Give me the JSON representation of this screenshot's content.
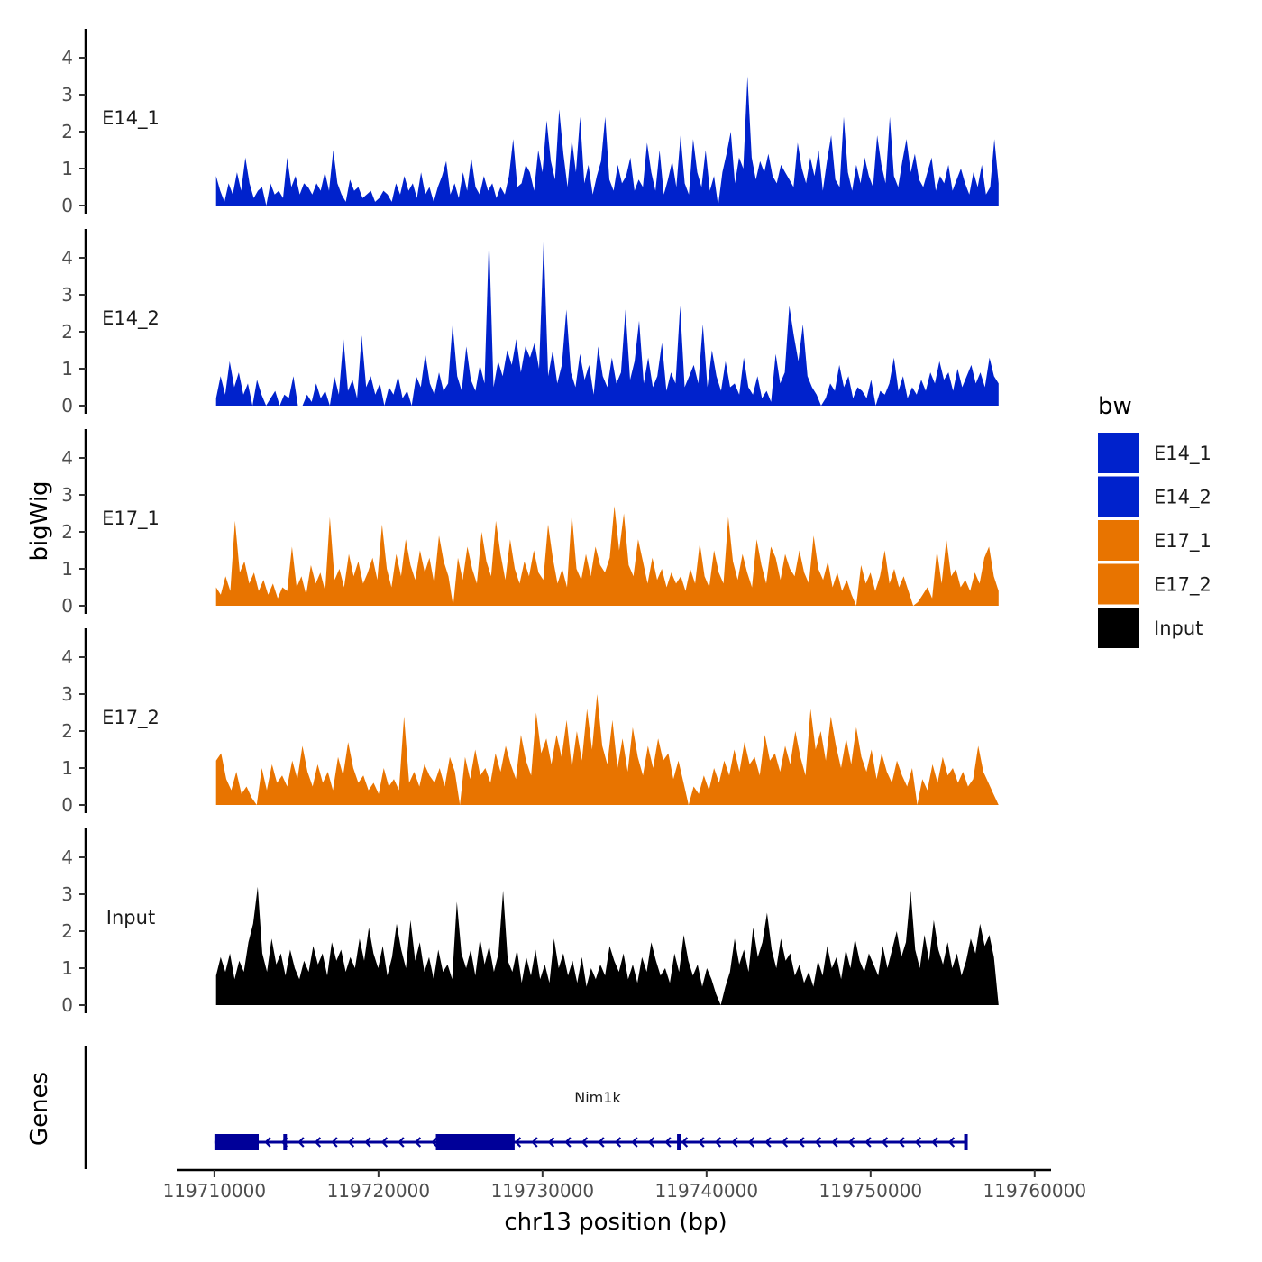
{
  "chart_data": {
    "type": "area",
    "xlabel": "chr13 position (bp)",
    "ylabel": "bigWig",
    "genes_label": "Genes",
    "xlim": [
      119707700,
      119761000
    ],
    "ylim": [
      0,
      4.8
    ],
    "x_ticks": [
      119710000,
      119720000,
      119730000,
      119740000,
      119750000,
      119760000
    ],
    "x_tick_labels": [
      "119710000",
      "119720000",
      "119730000",
      "119740000",
      "119750000",
      "119760000"
    ],
    "y_ticks": [
      0,
      1,
      2,
      3,
      4
    ],
    "y_tick_labels": [
      "0",
      "1",
      "2",
      "3",
      "4"
    ],
    "legend": {
      "title": "bw",
      "entries": [
        {
          "label": "E14_1",
          "color": "#0022cc"
        },
        {
          "label": "E14_2",
          "color": "#0022cc"
        },
        {
          "label": "E17_1",
          "color": "#e87400"
        },
        {
          "label": "E17_2",
          "color": "#e87400"
        },
        {
          "label": "Input",
          "color": "#000000"
        }
      ]
    },
    "series_x_start": 119710100,
    "series_x_end": 119757800,
    "series": [
      {
        "name": "E14_1",
        "color": "#0022cc",
        "values": [
          0.8,
          0.4,
          0.1,
          0.6,
          0.3,
          0.9,
          0.4,
          1.3,
          0.6,
          0.2,
          0.4,
          0.5,
          0.0,
          0.6,
          0.3,
          0.4,
          0.2,
          1.3,
          0.5,
          0.8,
          0.3,
          0.6,
          0.5,
          0.3,
          0.6,
          0.4,
          0.9,
          0.4,
          1.5,
          0.6,
          0.3,
          0.1,
          0.7,
          0.4,
          0.5,
          0.2,
          0.3,
          0.4,
          0.1,
          0.2,
          0.4,
          0.3,
          0.1,
          0.6,
          0.3,
          0.8,
          0.4,
          0.6,
          0.2,
          0.9,
          0.3,
          0.5,
          0.1,
          0.5,
          0.8,
          1.2,
          0.3,
          0.6,
          0.2,
          0.9,
          0.4,
          1.3,
          0.5,
          0.3,
          0.8,
          0.4,
          0.6,
          0.2,
          0.5,
          0.3,
          0.8,
          1.8,
          0.5,
          0.6,
          1.1,
          0.9,
          0.4,
          1.5,
          0.9,
          2.3,
          1.2,
          0.7,
          2.6,
          1.4,
          0.5,
          1.8,
          0.9,
          2.4,
          0.6,
          1.1,
          0.3,
          0.8,
          1.2,
          2.4,
          0.7,
          0.4,
          1.1,
          0.6,
          0.8,
          1.3,
          0.4,
          0.7,
          0.5,
          1.7,
          0.9,
          0.4,
          1.5,
          0.3,
          0.7,
          1.2,
          0.5,
          1.9,
          0.6,
          0.3,
          1.8,
          0.9,
          0.5,
          1.5,
          0.4,
          0.8,
          0.0,
          0.9,
          1.4,
          2.0,
          0.6,
          1.3,
          1.0,
          3.5,
          1.3,
          0.7,
          1.2,
          0.9,
          1.4,
          0.8,
          0.6,
          1.1,
          0.9,
          0.7,
          0.5,
          1.7,
          1.0,
          0.6,
          1.3,
          0.8,
          1.5,
          0.4,
          1.2,
          1.9,
          0.7,
          0.5,
          2.4,
          0.9,
          0.4,
          1.1,
          0.6,
          1.3,
          0.8,
          0.5,
          1.9,
          1.1,
          0.6,
          2.4,
          0.8,
          0.5,
          1.2,
          1.8,
          0.9,
          1.4,
          0.7,
          0.5,
          0.9,
          1.3,
          0.4,
          0.8,
          0.6,
          1.1,
          0.4,
          0.7,
          1.0,
          0.6,
          0.3,
          0.9,
          0.5,
          1.1,
          0.3,
          0.5,
          1.8,
          0.6
        ]
      },
      {
        "name": "E14_2",
        "color": "#0022cc",
        "values": [
          0.2,
          0.8,
          0.3,
          1.2,
          0.5,
          0.9,
          0.3,
          0.6,
          0.0,
          0.7,
          0.3,
          0.0,
          0.2,
          0.4,
          0.0,
          0.3,
          0.2,
          0.8,
          0.0,
          0.0,
          0.3,
          0.1,
          0.6,
          0.2,
          0.4,
          0.0,
          0.8,
          0.3,
          1.8,
          0.4,
          0.7,
          0.2,
          1.9,
          0.5,
          0.8,
          0.3,
          0.6,
          0.0,
          0.5,
          0.3,
          0.8,
          0.2,
          0.4,
          0.0,
          0.8,
          0.5,
          1.4,
          0.6,
          0.3,
          0.9,
          0.4,
          0.6,
          2.2,
          0.8,
          0.4,
          1.6,
          0.7,
          0.4,
          1.1,
          0.6,
          4.6,
          0.5,
          1.2,
          0.8,
          1.5,
          1.1,
          1.8,
          0.9,
          1.6,
          1.3,
          1.7,
          1.0,
          4.5,
          0.8,
          1.5,
          0.6,
          1.1,
          2.6,
          0.9,
          0.5,
          1.4,
          0.7,
          1.1,
          0.3,
          1.6,
          0.8,
          0.5,
          1.3,
          0.6,
          0.9,
          2.6,
          0.7,
          1.2,
          2.3,
          0.6,
          1.3,
          0.5,
          0.8,
          1.7,
          0.4,
          0.9,
          0.6,
          2.7,
          0.5,
          0.8,
          1.1,
          0.6,
          2.2,
          0.5,
          1.5,
          0.8,
          0.4,
          1.2,
          0.5,
          0.6,
          0.3,
          1.3,
          0.5,
          0.3,
          0.8,
          0.2,
          0.4,
          0.1,
          1.4,
          0.6,
          0.9,
          2.7,
          1.9,
          1.2,
          2.2,
          0.8,
          0.5,
          0.3,
          0.0,
          0.2,
          0.6,
          0.4,
          1.1,
          0.5,
          0.8,
          0.2,
          0.5,
          0.4,
          0.2,
          0.7,
          0.0,
          0.4,
          0.3,
          0.6,
          1.3,
          0.4,
          0.8,
          0.2,
          0.5,
          0.3,
          0.7,
          0.4,
          0.9,
          0.6,
          1.2,
          0.7,
          0.9,
          0.4,
          1.0,
          0.5,
          0.8,
          1.1,
          0.6,
          0.9,
          0.5,
          1.3,
          0.8,
          0.6
        ]
      },
      {
        "name": "E17_1",
        "color": "#e87400",
        "values": [
          0.5,
          0.3,
          0.8,
          0.4,
          2.3,
          0.9,
          1.2,
          0.6,
          0.9,
          0.4,
          0.7,
          0.3,
          0.6,
          0.2,
          0.5,
          0.4,
          1.6,
          0.5,
          0.8,
          0.3,
          1.1,
          0.6,
          0.9,
          0.4,
          2.4,
          0.7,
          1.0,
          0.5,
          1.4,
          0.8,
          1.2,
          0.6,
          0.9,
          1.3,
          0.7,
          2.2,
          1.0,
          0.5,
          1.4,
          0.8,
          1.8,
          1.1,
          0.7,
          1.5,
          0.9,
          1.3,
          0.6,
          1.9,
          1.2,
          0.8,
          0.0,
          1.3,
          0.7,
          1.6,
          1.0,
          0.6,
          2.0,
          1.2,
          0.8,
          2.3,
          1.4,
          0.7,
          1.8,
          1.0,
          0.6,
          1.2,
          0.8,
          1.5,
          0.9,
          0.7,
          2.2,
          1.3,
          0.6,
          1.0,
          0.5,
          2.5,
          1.0,
          0.7,
          1.4,
          0.8,
          1.6,
          1.1,
          0.9,
          1.3,
          2.7,
          1.5,
          2.5,
          1.1,
          0.8,
          1.8,
          1.2,
          0.6,
          1.3,
          0.7,
          1.0,
          0.5,
          0.9,
          0.6,
          0.8,
          0.4,
          1.0,
          0.6,
          1.7,
          0.8,
          0.5,
          1.5,
          0.9,
          0.6,
          2.4,
          1.2,
          0.7,
          1.4,
          0.9,
          0.5,
          1.8,
          1.1,
          0.6,
          1.6,
          1.3,
          0.7,
          1.4,
          1.0,
          0.8,
          1.5,
          0.9,
          0.6,
          1.9,
          1.0,
          0.7,
          1.2,
          0.5,
          0.9,
          0.4,
          0.7,
          0.3,
          0.0,
          1.1,
          0.6,
          0.9,
          0.4,
          0.8,
          1.5,
          0.6,
          1.0,
          0.5,
          0.8,
          0.4,
          0.0,
          0.1,
          0.3,
          0.5,
          0.2,
          1.5,
          0.6,
          1.8,
          0.8,
          1.0,
          0.5,
          0.7,
          0.4,
          0.9,
          0.6,
          1.3,
          1.6,
          0.8,
          0.4
        ]
      },
      {
        "name": "E17_2",
        "color": "#e87400",
        "values": [
          1.2,
          1.4,
          0.7,
          0.4,
          0.9,
          0.3,
          0.5,
          0.2,
          0.0,
          1.0,
          0.4,
          1.1,
          0.6,
          0.8,
          0.5,
          1.2,
          0.7,
          1.6,
          0.9,
          0.5,
          1.1,
          0.6,
          0.9,
          0.4,
          1.3,
          0.8,
          1.7,
          1.0,
          0.6,
          0.8,
          0.4,
          0.6,
          0.3,
          1.0,
          0.5,
          0.7,
          0.4,
          2.4,
          0.6,
          0.9,
          0.5,
          1.1,
          0.8,
          0.6,
          1.0,
          0.5,
          1.3,
          0.9,
          0.0,
          1.3,
          0.7,
          1.5,
          0.8,
          1.0,
          0.6,
          1.4,
          0.9,
          1.6,
          1.1,
          0.7,
          1.9,
          1.2,
          0.8,
          2.5,
          1.4,
          1.8,
          1.1,
          1.9,
          1.3,
          2.3,
          1.0,
          2.0,
          1.2,
          2.6,
          1.5,
          3.0,
          1.6,
          1.1,
          2.3,
          1.0,
          1.8,
          0.9,
          2.1,
          1.3,
          0.8,
          1.6,
          1.0,
          1.8,
          1.2,
          1.4,
          0.7,
          1.2,
          0.6,
          0.0,
          0.5,
          0.3,
          0.8,
          0.4,
          1.0,
          0.6,
          1.2,
          0.8,
          1.5,
          0.9,
          1.7,
          1.1,
          1.3,
          0.8,
          1.9,
          1.2,
          1.4,
          0.9,
          1.6,
          1.1,
          2.0,
          1.3,
          0.8,
          2.6,
          1.5,
          2.0,
          1.2,
          2.4,
          1.6,
          1.0,
          1.8,
          1.1,
          2.1,
          1.3,
          0.9,
          1.5,
          0.7,
          1.4,
          0.9,
          0.6,
          1.2,
          0.8,
          0.5,
          1.0,
          0.0,
          0.7,
          0.4,
          1.1,
          0.6,
          1.3,
          0.8,
          1.0,
          0.6,
          0.9,
          0.5,
          0.7,
          1.6,
          0.9,
          0.6,
          0.3,
          0.0
        ]
      },
      {
        "name": "Input",
        "color": "#000000",
        "values": [
          0.8,
          1.3,
          0.9,
          1.4,
          0.7,
          1.2,
          0.9,
          1.7,
          2.2,
          3.2,
          1.4,
          0.9,
          1.8,
          1.1,
          1.4,
          0.8,
          1.5,
          1.0,
          0.7,
          1.2,
          0.9,
          1.6,
          1.1,
          1.4,
          0.8,
          1.7,
          1.2,
          1.5,
          0.9,
          1.3,
          1.0,
          1.8,
          1.2,
          2.1,
          1.4,
          1.0,
          1.6,
          0.8,
          1.3,
          2.2,
          1.5,
          1.0,
          2.3,
          1.2,
          1.7,
          0.9,
          1.3,
          0.7,
          1.5,
          0.9,
          1.1,
          0.7,
          2.8,
          1.4,
          1.0,
          1.5,
          0.8,
          1.8,
          1.1,
          1.6,
          0.9,
          1.4,
          3.1,
          1.2,
          0.9,
          1.5,
          0.6,
          1.3,
          0.8,
          1.5,
          0.7,
          1.1,
          0.6,
          1.8,
          1.0,
          1.4,
          0.8,
          1.2,
          0.6,
          1.3,
          0.5,
          1.0,
          0.7,
          1.1,
          0.8,
          1.6,
          1.2,
          0.9,
          1.4,
          0.7,
          1.1,
          0.6,
          1.3,
          0.9,
          1.7,
          1.2,
          0.8,
          1.0,
          0.6,
          1.4,
          0.9,
          1.9,
          1.2,
          0.8,
          1.1,
          0.5,
          1.0,
          0.7,
          0.3,
          0.0,
          0.5,
          0.9,
          1.8,
          1.1,
          1.5,
          0.9,
          2.1,
          1.3,
          1.7,
          2.5,
          1.5,
          1.0,
          1.8,
          1.2,
          1.4,
          0.8,
          1.1,
          0.6,
          0.9,
          0.5,
          1.2,
          0.8,
          1.6,
          1.0,
          1.3,
          0.7,
          1.5,
          1.0,
          1.8,
          1.2,
          0.9,
          1.4,
          1.1,
          0.8,
          1.6,
          1.0,
          1.5,
          2.0,
          1.3,
          1.7,
          3.1,
          1.5,
          1.0,
          1.9,
          1.2,
          2.3,
          1.5,
          1.1,
          1.7,
          1.0,
          1.4,
          0.8,
          1.2,
          1.8,
          1.4,
          2.2,
          1.6,
          1.9,
          1.3,
          0.0
        ]
      }
    ],
    "gene": {
      "name": "Nim1k",
      "strand": "-",
      "start": 119710000,
      "end": 119755800,
      "exons": [
        [
          119710000,
          119712700
        ],
        [
          119714200,
          119714400
        ],
        [
          119723500,
          119728300
        ],
        [
          119738200,
          119738400
        ],
        [
          119755700,
          119755800
        ]
      ],
      "color": "#000099"
    }
  }
}
